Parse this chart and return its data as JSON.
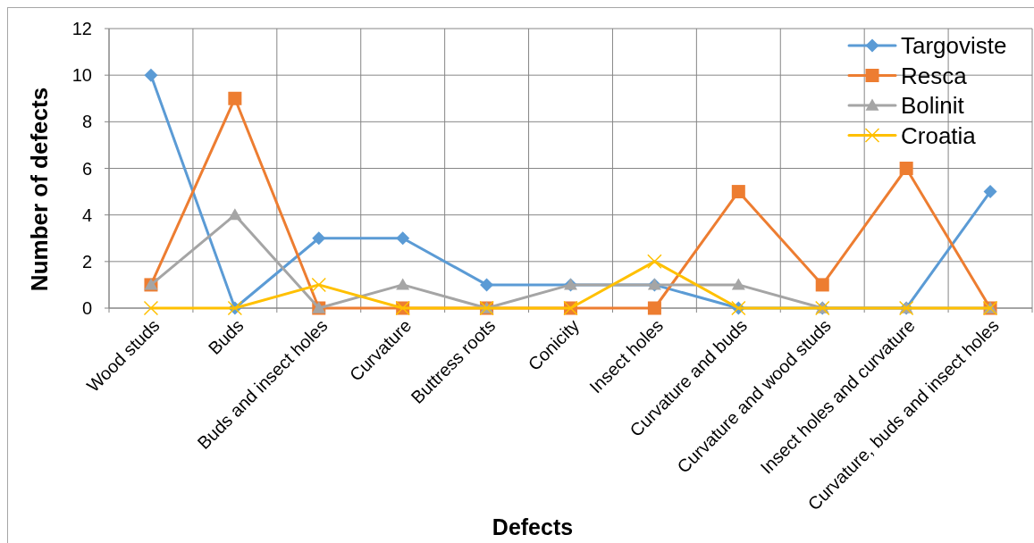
{
  "chart_data": {
    "type": "line",
    "xlabel": "Defects",
    "ylabel": "Number of defects",
    "categories": [
      "Wood studs",
      "Buds",
      "Buds and insect holes",
      "Curvature",
      "Buttress roots",
      "Conicity",
      "Insect holes",
      "Curvature and buds",
      "Curvature and wood studs",
      "Insect holes and curvature",
      "Curvature, buds and insect holes"
    ],
    "series": [
      {
        "name": "Targoviste",
        "color": "#5b9bd5",
        "marker": "diamond",
        "values": [
          10,
          0,
          3,
          3,
          1,
          1,
          1,
          0,
          0,
          0,
          5
        ]
      },
      {
        "name": "Resca",
        "color": "#ed7d31",
        "marker": "square",
        "values": [
          1,
          9,
          0,
          0,
          0,
          0,
          0,
          5,
          1,
          6,
          0
        ]
      },
      {
        "name": "Bolinit",
        "color": "#a5a5a5",
        "marker": "triangle",
        "values": [
          1,
          4,
          0,
          1,
          0,
          1,
          1,
          1,
          0,
          0,
          0
        ]
      },
      {
        "name": "Croatia",
        "color": "#ffc000",
        "marker": "cross",
        "values": [
          0,
          0,
          1,
          0,
          0,
          0,
          2,
          0,
          0,
          0,
          0
        ]
      }
    ],
    "ylim": [
      0,
      12
    ],
    "yticks": [
      0,
      2,
      4,
      6,
      8,
      10,
      12
    ],
    "grid": true,
    "legend": "top right",
    "line_style": "solid"
  }
}
